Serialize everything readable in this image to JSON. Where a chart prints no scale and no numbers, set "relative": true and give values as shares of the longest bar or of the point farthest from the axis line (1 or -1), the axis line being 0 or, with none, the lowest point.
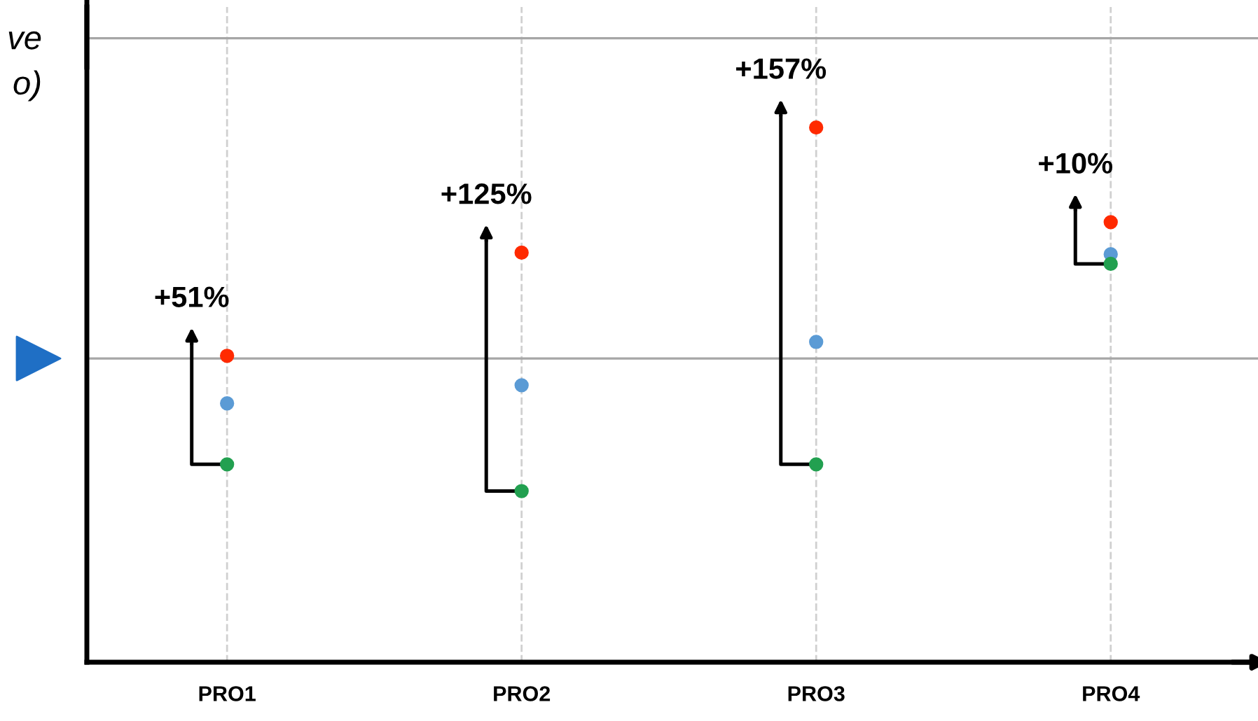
{
  "chart_data": {
    "type": "scatter",
    "relative": true,
    "ylabel": "ve\no)",
    "categories": [
      "PRO1",
      "PRO2",
      "PRO3",
      "PRO4"
    ],
    "series": [
      {
        "color": "#ff2a00",
        "values": [
          0.573,
          0.766,
          1,
          0.823
        ]
      },
      {
        "color": "#5b9bd5",
        "values": [
          0.484,
          0.518,
          0.599,
          0.763
        ]
      },
      {
        "color": "#22a050",
        "values": [
          0.37,
          0.32,
          0.37,
          0.745
        ]
      }
    ],
    "marker": "circle",
    "grid": "x",
    "ref_lines": [
      {
        "axis": "y",
        "value": 0.568,
        "color": "#a6a6a6"
      },
      {
        "axis": "y",
        "value": 1.167,
        "color": "#a6a6a6"
      }
    ],
    "annotations": [
      {
        "text": "+51%",
        "x": "PRO1",
        "y": 0.573
      },
      {
        "text": "+125%",
        "x": "PRO2",
        "y": 0.766
      },
      {
        "text": "+157%",
        "x": "PRO3",
        "y": 1
      },
      {
        "text": "+10%",
        "x": "PRO4",
        "y": 0.823
      }
    ]
  }
}
